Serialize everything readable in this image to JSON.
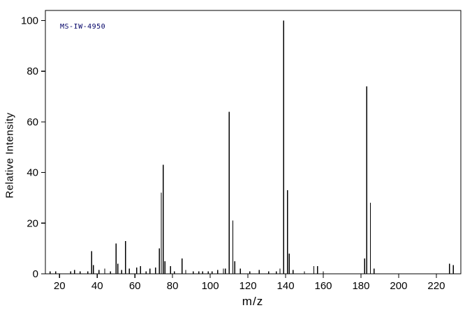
{
  "chart_data": {
    "type": "bar",
    "title": "",
    "xlabel": "m/z",
    "ylabel": "Relative Intensity",
    "annotation": "MS-IW-4950",
    "xlim": [
      12.5,
      233
    ],
    "ylim": [
      0,
      104
    ],
    "xticks": [
      20,
      40,
      60,
      80,
      100,
      120,
      140,
      160,
      180,
      200,
      220
    ],
    "yticks": [
      0,
      20,
      40,
      60,
      80,
      100
    ],
    "grid": false,
    "legend": false,
    "peaks": [
      [
        15,
        1
      ],
      [
        18,
        1
      ],
      [
        26,
        1
      ],
      [
        28,
        1.5
      ],
      [
        31,
        1
      ],
      [
        35,
        1
      ],
      [
        37,
        9
      ],
      [
        38,
        3.5
      ],
      [
        41,
        1.5
      ],
      [
        44,
        2
      ],
      [
        47,
        1
      ],
      [
        50,
        12
      ],
      [
        51,
        4
      ],
      [
        53,
        1.5
      ],
      [
        55,
        13
      ],
      [
        57,
        2
      ],
      [
        61,
        2.5
      ],
      [
        63,
        3
      ],
      [
        66,
        1
      ],
      [
        68,
        2
      ],
      [
        71,
        2.5
      ],
      [
        73,
        10
      ],
      [
        74,
        32
      ],
      [
        75,
        43
      ],
      [
        76,
        5
      ],
      [
        79,
        3
      ],
      [
        81,
        1
      ],
      [
        85,
        6
      ],
      [
        87,
        1.5
      ],
      [
        91,
        1
      ],
      [
        94,
        1
      ],
      [
        96,
        1
      ],
      [
        99,
        1
      ],
      [
        101,
        1
      ],
      [
        104,
        1.5
      ],
      [
        107,
        2
      ],
      [
        108,
        2
      ],
      [
        110,
        64
      ],
      [
        112,
        21
      ],
      [
        113,
        5
      ],
      [
        116,
        2
      ],
      [
        121,
        1
      ],
      [
        126,
        1.5
      ],
      [
        131,
        1
      ],
      [
        135,
        1
      ],
      [
        137,
        2
      ],
      [
        139,
        100
      ],
      [
        141,
        33
      ],
      [
        142,
        8
      ],
      [
        144,
        1.5
      ],
      [
        150,
        1
      ],
      [
        155,
        3
      ],
      [
        157,
        3
      ],
      [
        160,
        1
      ],
      [
        182,
        6
      ],
      [
        183,
        74
      ],
      [
        185,
        28
      ],
      [
        187,
        2
      ],
      [
        227,
        4
      ],
      [
        229,
        3.5
      ]
    ]
  },
  "colors": {
    "background": "#ffffff",
    "line": "#000000",
    "frame": "#000000",
    "tick_text": "#000000",
    "annotation_text": "#000066"
  }
}
